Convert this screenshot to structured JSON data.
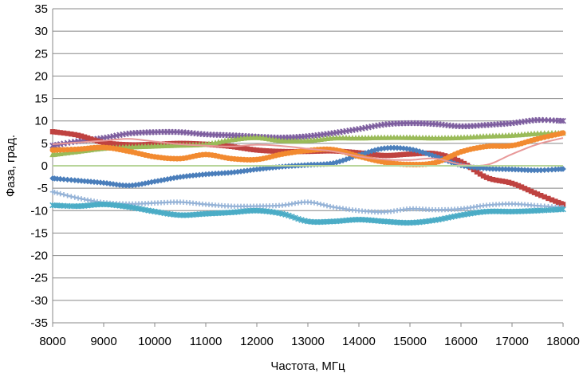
{
  "chart_data": {
    "type": "line",
    "title": "",
    "xlabel": "Частота, МГц",
    "ylabel": "Фаза, град.",
    "xlim": [
      8000,
      18000
    ],
    "ylim": [
      -35,
      35
    ],
    "x_ticks": [
      8000,
      9000,
      10000,
      11000,
      12000,
      13000,
      14000,
      15000,
      16000,
      17000,
      18000
    ],
    "y_ticks": [
      35,
      30,
      25,
      20,
      15,
      10,
      5,
      0,
      -5,
      -10,
      -15,
      -20,
      -25,
      -30,
      -35
    ],
    "x_tick_labels": [
      "8000",
      "9000",
      "10000",
      "11000",
      "12000",
      "13000",
      "14000",
      "15000",
      "16000",
      "17000",
      "18000"
    ],
    "y_tick_labels": [
      "35",
      "30",
      "25",
      "20",
      "15",
      "10",
      "5",
      "0",
      "-5",
      "-10",
      "-15",
      "-20",
      "-25",
      "-30",
      "-35"
    ],
    "grid": true,
    "legend": "none",
    "series": [
      {
        "color": "#7F60A0",
        "marker": "x",
        "x": [
          8000,
          8500,
          9000,
          9500,
          10000,
          10500,
          11000,
          11500,
          12000,
          12500,
          13000,
          13500,
          14000,
          14500,
          15000,
          15500,
          16000,
          16500,
          17000,
          17500,
          18000
        ],
        "y": [
          4.5,
          5.5,
          6.2,
          7.2,
          7.5,
          7.5,
          7,
          6.8,
          6.5,
          6.3,
          6.6,
          7.3,
          8.2,
          9.2,
          9.5,
          9.3,
          8.8,
          9.1,
          9.5,
          10.2,
          10
        ]
      },
      {
        "color": "#BF4240",
        "marker": "square",
        "x": [
          8000,
          8500,
          9000,
          9500,
          10000,
          10500,
          11000,
          11500,
          12000,
          12500,
          13000,
          13500,
          14000,
          14500,
          15000,
          15500,
          16000,
          16500,
          17000,
          17500,
          18000
        ],
        "y": [
          7.6,
          6.8,
          5.2,
          4.7,
          4.8,
          5,
          4.8,
          4.3,
          3.5,
          3.2,
          3.2,
          3.3,
          2.9,
          2.3,
          2.6,
          2.7,
          0.9,
          -2.6,
          -3.9,
          -6.3,
          -8.6
        ]
      },
      {
        "color": "#9ABB59",
        "marker": "triangle",
        "x": [
          8000,
          8500,
          9000,
          9500,
          10000,
          10500,
          11000,
          11500,
          12000,
          12500,
          13000,
          13500,
          14000,
          14500,
          15000,
          15500,
          16000,
          16500,
          17000,
          17500,
          18000
        ],
        "y": [
          2.5,
          3.2,
          3.9,
          4.2,
          4.4,
          4.6,
          4.8,
          5.8,
          6.3,
          5.6,
          5.6,
          6.2,
          6.2,
          6.3,
          6.3,
          6.2,
          6.3,
          6.6,
          6.8,
          7.2,
          7.3
        ]
      },
      {
        "color": "#4A7EBB",
        "marker": "diamond",
        "x": [
          8000,
          8500,
          9000,
          9500,
          10000,
          10500,
          11000,
          11500,
          12000,
          12500,
          13000,
          13500,
          14000,
          14500,
          15000,
          15500,
          16000,
          16500,
          17000,
          17500,
          18000
        ],
        "y": [
          -2.8,
          -3.3,
          -3.8,
          -4.4,
          -3.5,
          -2.5,
          -1.9,
          -1.5,
          -0.8,
          -0.2,
          0.2,
          0.6,
          2.4,
          3.9,
          3.7,
          2.1,
          0.1,
          -0.6,
          -0.8,
          -1,
          -0.7
        ]
      },
      {
        "color": "#F28A30",
        "marker": "circle",
        "x": [
          8000,
          8500,
          9000,
          9500,
          10000,
          10500,
          11000,
          11500,
          12000,
          12500,
          13000,
          13500,
          14000,
          14500,
          15000,
          15500,
          16000,
          16500,
          17000,
          17500,
          18000
        ],
        "y": [
          3.5,
          3.7,
          4.1,
          3.2,
          2,
          1.6,
          2.5,
          1.6,
          1.4,
          2.6,
          3.4,
          3.6,
          2.1,
          0.8,
          0.3,
          0.7,
          3.1,
          4.3,
          4.5,
          6,
          7.3
        ]
      },
      {
        "color": "#E89898",
        "marker": "none",
        "x": [
          8000,
          8500,
          9000,
          9500,
          10000,
          10500,
          11000,
          11500,
          12000,
          12500,
          13000,
          13500,
          14000,
          14500,
          15000,
          15500,
          16000,
          16500,
          17000,
          17500,
          18000
        ],
        "y": [
          4.8,
          5.2,
          5.6,
          6,
          5.4,
          4.8,
          4.5,
          4.3,
          4.7,
          4.4,
          3.8,
          3.2,
          2.1,
          1.4,
          1.3,
          1.6,
          0.3,
          0.2,
          2.6,
          4.8,
          6.2
        ]
      },
      {
        "color": "#95B3D7",
        "marker": "plus",
        "x": [
          8000,
          8500,
          9000,
          9500,
          10000,
          10500,
          11000,
          11500,
          12000,
          12500,
          13000,
          13500,
          14000,
          14500,
          15000,
          15500,
          16000,
          16500,
          17000,
          17500,
          18000
        ],
        "y": [
          -5.8,
          -7.2,
          -8.2,
          -8.5,
          -8.3,
          -8.1,
          -8.6,
          -9,
          -9,
          -8.8,
          -8.1,
          -9.2,
          -10,
          -10.3,
          -9.6,
          -9.8,
          -9.6,
          -8.8,
          -8.5,
          -8.9,
          -9.3
        ]
      },
      {
        "color": "#4BACC6",
        "marker": "asterisk",
        "x": [
          8000,
          8500,
          9000,
          9500,
          10000,
          10500,
          11000,
          11500,
          12000,
          12500,
          13000,
          13500,
          14000,
          14500,
          15000,
          15500,
          16000,
          16500,
          17000,
          17500,
          18000
        ],
        "y": [
          -8.8,
          -9,
          -8.6,
          -9.2,
          -10.2,
          -11,
          -10.7,
          -10.4,
          -10,
          -10.7,
          -12.4,
          -12.4,
          -12,
          -12.4,
          -12.7,
          -12.1,
          -11,
          -10.2,
          -10.2,
          -10,
          -9.7
        ]
      },
      {
        "color": "#B8D59A",
        "marker": "none",
        "x": [
          8000,
          18000
        ],
        "y": [
          0,
          0
        ]
      }
    ]
  }
}
